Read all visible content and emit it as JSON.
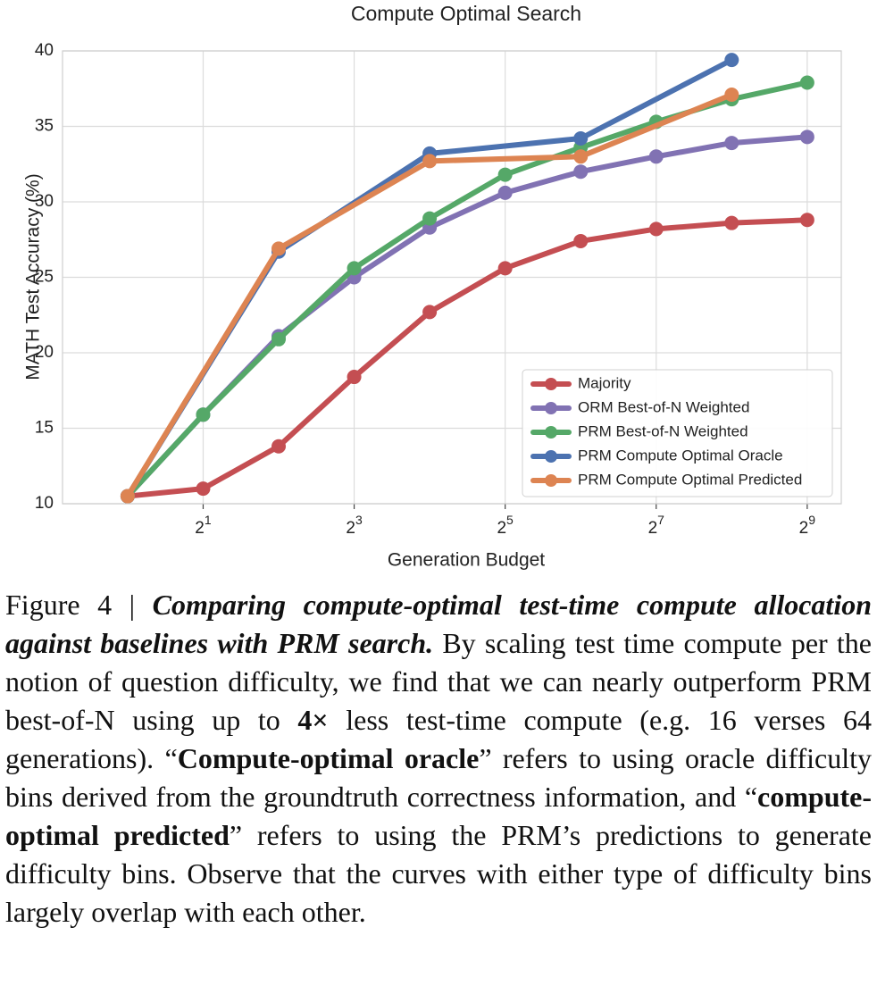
{
  "chart_data": {
    "type": "line",
    "title": "Compute Optimal Search",
    "x_label": "Generation Budget",
    "y_label": "MATH Test Accuracy (%)",
    "x_scale": "log2",
    "xlim": [
      0.55,
      700
    ],
    "ylim": [
      10,
      40
    ],
    "xticks": [
      {
        "value": 2,
        "label": "2",
        "exponent": "1"
      },
      {
        "value": 8,
        "label": "2",
        "exponent": "3"
      },
      {
        "value": 32,
        "label": "2",
        "exponent": "5"
      },
      {
        "value": 128,
        "label": "2",
        "exponent": "7"
      },
      {
        "value": 512,
        "label": "2",
        "exponent": "9"
      }
    ],
    "yticks": [
      10,
      15,
      20,
      25,
      30,
      35,
      40
    ],
    "grid": true,
    "legend": "lower right",
    "series": [
      {
        "name": "Majority",
        "color": "#c44e52",
        "x": [
          1,
          2,
          4,
          8,
          16,
          32,
          64,
          128,
          256,
          512
        ],
        "values": [
          10.5,
          11.0,
          13.8,
          18.4,
          22.7,
          25.6,
          27.4,
          28.2,
          28.6,
          28.8
        ]
      },
      {
        "name": "ORM Best-of-N Weighted",
        "color": "#8172b3",
        "x": [
          1,
          2,
          4,
          8,
          16,
          32,
          64,
          128,
          256,
          512
        ],
        "values": [
          10.5,
          15.9,
          21.1,
          25.0,
          28.3,
          30.6,
          32.0,
          33.0,
          33.9,
          34.3
        ]
      },
      {
        "name": "PRM Best-of-N Weighted",
        "color": "#55a868",
        "x": [
          1,
          2,
          4,
          8,
          16,
          32,
          64,
          128,
          256,
          512
        ],
        "values": [
          10.5,
          15.9,
          20.9,
          25.6,
          28.9,
          31.8,
          33.6,
          35.3,
          36.8,
          37.9
        ]
      },
      {
        "name": "PRM Compute Optimal Oracle",
        "color": "#4c72b0",
        "x": [
          1,
          4,
          16,
          64,
          256
        ],
        "values": [
          10.5,
          26.7,
          33.2,
          34.2,
          39.4
        ]
      },
      {
        "name": "PRM Compute Optimal Predicted",
        "color": "#dd8452",
        "x": [
          1,
          4,
          16,
          64,
          256
        ],
        "values": [
          10.5,
          26.9,
          32.7,
          33.0,
          37.1
        ]
      }
    ]
  },
  "caption": {
    "segments": [
      {
        "text": "Figure 4 | ",
        "style": "normal"
      },
      {
        "text": "Comparing compute-optimal test-time compute allocation against baselines with PRM search.",
        "style": "bold-italic"
      },
      {
        "text": " By scaling test time compute per the notion of question difficulty, we find that we can nearly outperform PRM best-of-N using up to ",
        "style": "normal"
      },
      {
        "text": "4×",
        "style": "bold"
      },
      {
        "text": " less test-time compute (e.g. 16 verses 64 generations). “",
        "style": "normal"
      },
      {
        "text": "Compute-optimal oracle",
        "style": "bold"
      },
      {
        "text": "” refers to using oracle difficulty bins derived from the groundtruth correctness information, and “",
        "style": "normal"
      },
      {
        "text": "compute-optimal predicted",
        "style": "bold"
      },
      {
        "text": "” refers to using the PRM’s predictions to generate difficulty bins. Observe that the curves with either type of difficulty bins largely overlap with each other.",
        "style": "normal"
      }
    ]
  }
}
